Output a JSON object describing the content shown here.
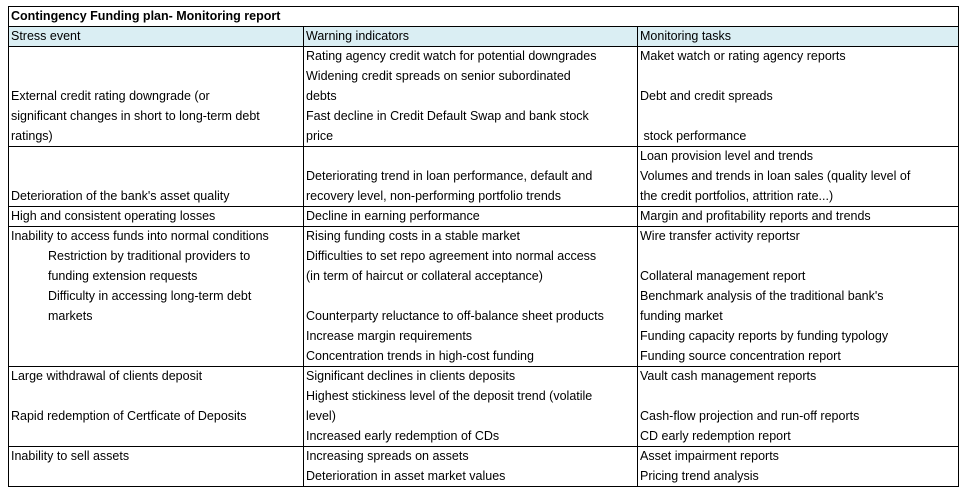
{
  "title": "Contingency Funding plan- Monitoring report",
  "header": [
    "Stress event",
    "Warning indicators",
    "Monitoring tasks"
  ],
  "blocks": [
    {
      "lines": [
        [
          null,
          "Rating agency credit watch for potential downgrades",
          "Maket watch or rating agency reports"
        ],
        [
          null,
          "Widening credit spreads on senior subordinated",
          null
        ],
        [
          "External credit rating downgrade (or",
          "debts",
          "Debt and credit spreads"
        ],
        [
          "significant changes in short to long-term debt",
          "Fast decline in Credit Default Swap and bank stock",
          null
        ],
        [
          "ratings)",
          "price",
          " stock performance"
        ]
      ]
    },
    {
      "lines": [
        [
          null,
          null,
          "Loan provision level and trends"
        ],
        [
          null,
          "Deteriorating trend in loan performance, default and",
          "Volumes and trends in loan sales (quality level of"
        ],
        [
          "Deterioration of the bank's asset quality",
          "recovery level, non-performing portfolio trends",
          "the credit portfolios, attrition rate...)"
        ]
      ]
    },
    {
      "lines": [
        [
          "High and consistent operating losses",
          "Decline in earning performance",
          "Margin and profitability reports and trends"
        ]
      ]
    },
    {
      "lines": [
        [
          "Inability to access funds into normal conditions",
          "Rising funding costs in a stable market",
          "Wire transfer activity reportsr"
        ],
        [
          "Restriction by traditional providers to",
          "Difficulties to set repo agreement into normal access",
          null
        ],
        [
          "funding extension requests",
          "(in term of haircut or collateral acceptance)",
          "Collateral management report"
        ],
        [
          "Difficulty in accessing long-term debt",
          null,
          "Benchmark analysis of the traditional bank's"
        ],
        [
          "markets",
          "Counterparty reluctance to off-balance sheet products",
          "funding market"
        ],
        [
          null,
          "Increase margin requirements",
          "Funding capacity reports by funding typology"
        ],
        [
          null,
          "Concentration trends in high-cost funding",
          "Funding source concentration report"
        ]
      ]
    },
    {
      "lines": [
        [
          "Large withdrawal of clients deposit",
          "Significant declines in clients deposits",
          "Vault cash management reports"
        ],
        [
          null,
          "Highest stickiness level of the deposit trend (volatile",
          null
        ],
        [
          "Rapid redemption of Certficate of Deposits",
          "level)",
          "Cash-flow projection and run-off reports"
        ],
        [
          null,
          "Increased early redemption of CDs",
          "CD early redemption report"
        ]
      ]
    },
    {
      "lines": [
        [
          "Inability to sell assets",
          "Increasing spreads on assets",
          "Asset impairment reports"
        ],
        [
          null,
          "Deterioration in asset market values",
          "Pricing trend analysis"
        ]
      ]
    }
  ]
}
